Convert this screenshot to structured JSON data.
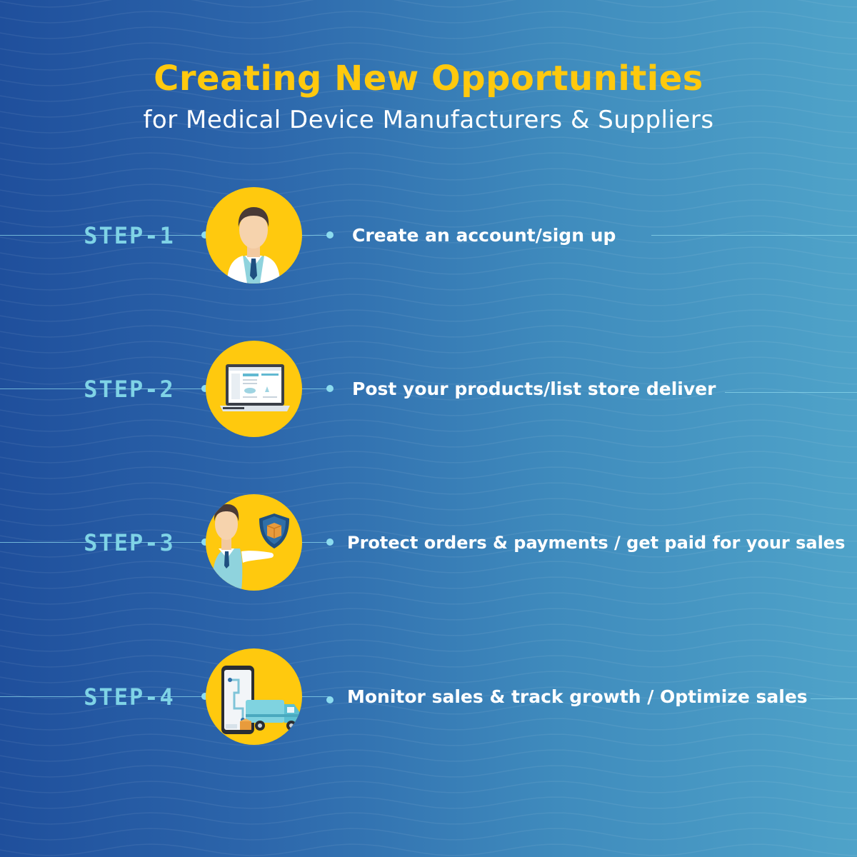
{
  "header": {
    "title": "Creating New Opportunities",
    "subtitle": "for Medical Device Manufacturers & Suppliers"
  },
  "steps": [
    {
      "label": "STEP-1",
      "description": "Create an account/sign up",
      "icon": "businessman-icon"
    },
    {
      "label": "STEP-2",
      "description": "Post your products/list store deliver",
      "icon": "laptop-listing-icon"
    },
    {
      "label": "STEP-3",
      "description": "Protect orders & payments / get paid for your sales",
      "icon": "secure-payment-icon"
    },
    {
      "label": "STEP-4",
      "description": "Monitor sales & track growth / Optimize sales",
      "icon": "delivery-tracking-icon"
    }
  ],
  "colors": {
    "title": "#ffc90e",
    "step_label": "#7fd3e6",
    "circle": "#ffc90e",
    "background_start": "#1f4f9c",
    "background_end": "#4fa3c9"
  }
}
